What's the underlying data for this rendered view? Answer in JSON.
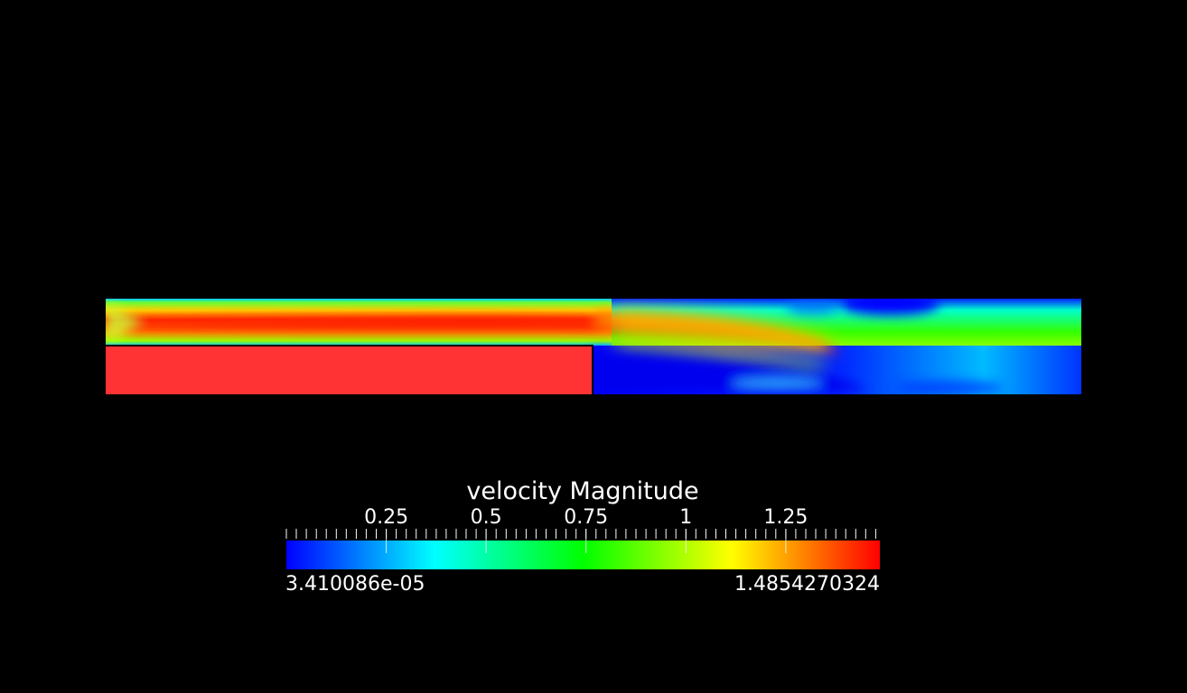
{
  "scalar_bar": {
    "title": "velocity Magnitude",
    "range_min_label": "3.410086e-05",
    "range_max_label": "1.4854270324",
    "range": [
      3.410086e-05,
      1.4854270324
    ],
    "tick_labels": [
      "0.25",
      "0.5",
      "0.75",
      "1",
      "1.25"
    ],
    "tick_values": [
      0.25,
      0.5,
      0.75,
      1.0,
      1.25
    ],
    "colormap": [
      "#0000ff",
      "#00ffff",
      "#00ff00",
      "#ffff00",
      "#ff0000"
    ]
  },
  "scene": {
    "background": "#000000",
    "solid_block_color": "#ff3333",
    "field": "velocity Magnitude"
  }
}
